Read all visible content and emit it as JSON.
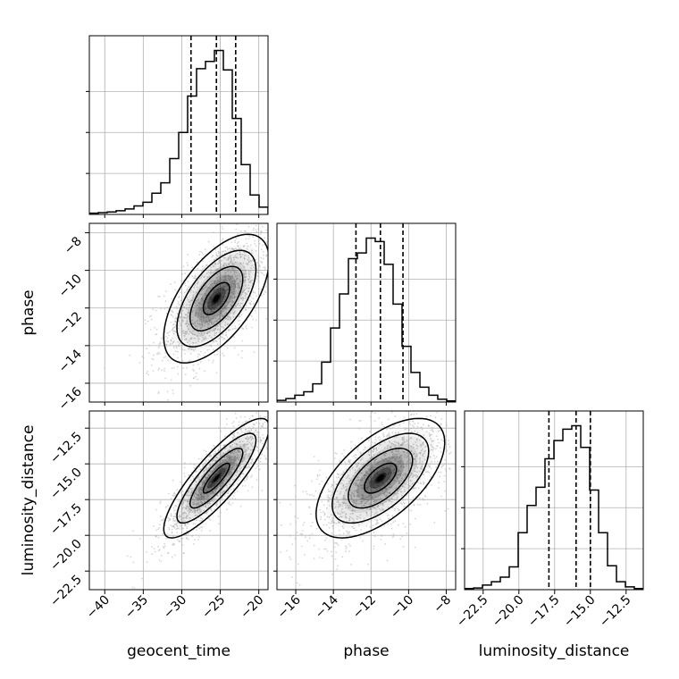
{
  "chart_data": {
    "type": "corner",
    "parameters": [
      "geocent_time",
      "phase",
      "luminosity_distance"
    ],
    "axis_labels": {
      "geocent_time": "geocent_time",
      "phase": "phase",
      "luminosity_distance": "luminosity_distance"
    },
    "ranges": {
      "geocent_time": [
        -42.0,
        -18.8
      ],
      "phase": [
        -17.0,
        -7.5
      ],
      "luminosity_distance": [
        -23.8,
        -11.3
      ]
    },
    "ticks": {
      "geocent_time": [
        -40,
        -35,
        -30,
        -25,
        -20
      ],
      "phase": [
        -16,
        -14,
        -12,
        -10,
        -8
      ],
      "luminosity_distance": [
        -22.5,
        -20.0,
        -17.5,
        -15.0,
        -12.5
      ]
    },
    "tick_labels": {
      "geocent_time": [
        "−40",
        "−35",
        "−30",
        "−25",
        "−20"
      ],
      "phase": [
        "−16",
        "−14",
        "−12",
        "−10",
        "−8"
      ],
      "luminosity_distance": [
        "−22.5",
        "−20.0",
        "−17.5",
        "−15.0",
        "−12.5"
      ]
    },
    "quantiles": {
      "geocent_time": [
        -28.8,
        -25.5,
        -23.0
      ],
      "phase": [
        -12.8,
        -11.5,
        -10.3
      ],
      "luminosity_distance": [
        -17.9,
        -16.0,
        -15.0
      ]
    },
    "histograms": {
      "geocent_time": {
        "edges": [
          -42.0,
          -40.84,
          -39.68,
          -38.52,
          -37.36,
          -36.2,
          -35.04,
          -33.88,
          -32.72,
          -31.56,
          -30.4,
          -29.24,
          -28.08,
          -26.92,
          -25.76,
          -24.6,
          -23.44,
          -22.28,
          -21.12,
          -19.96,
          -18.8
        ],
        "counts": [
          2,
          3,
          4,
          6,
          9,
          14,
          20,
          35,
          52,
          92,
          135,
          195,
          240,
          252,
          270,
          238,
          158,
          82,
          32,
          12
        ]
      },
      "phase": {
        "edges": [
          -17.0,
          -16.525,
          -16.05,
          -15.575,
          -15.1,
          -14.625,
          -14.15,
          -13.675,
          -13.2,
          -12.725,
          -12.25,
          -11.775,
          -11.3,
          -10.825,
          -10.35,
          -9.875,
          -9.4,
          -8.925,
          -8.45,
          -7.975,
          -7.5
        ],
        "counts": [
          3,
          6,
          12,
          18,
          32,
          70,
          130,
          190,
          252,
          262,
          288,
          282,
          242,
          172,
          98,
          52,
          26,
          12,
          5,
          2
        ]
      },
      "luminosity_distance": {
        "edges": [
          -23.8,
          -23.175,
          -22.55,
          -21.925,
          -21.3,
          -20.675,
          -20.05,
          -19.425,
          -18.8,
          -18.175,
          -17.55,
          -16.925,
          -16.3,
          -15.675,
          -15.05,
          -14.425,
          -13.8,
          -13.175,
          -12.55,
          -11.925,
          -11.3
        ],
        "counts": [
          2,
          3,
          8,
          14,
          22,
          40,
          100,
          148,
          180,
          230,
          262,
          282,
          288,
          250,
          175,
          100,
          42,
          14,
          5,
          2
        ]
      }
    },
    "pairs": [
      {
        "x": "geocent_time",
        "y": "phase",
        "mean": [
          -25.5,
          -11.5
        ],
        "sd": [
          3.6,
          1.8
        ],
        "corr": 0.6
      },
      {
        "x": "geocent_time",
        "y": "luminosity_distance",
        "mean": [
          -25.5,
          -16.0
        ],
        "sd": [
          3.6,
          2.2
        ],
        "corr": 0.85
      },
      {
        "x": "phase",
        "y": "luminosity_distance",
        "mean": [
          -11.5,
          -16.0
        ],
        "sd": [
          1.8,
          2.2
        ],
        "corr": 0.6
      }
    ],
    "contour_levels": [
      0.5,
      1.0,
      1.5,
      2.0
    ],
    "grid": true,
    "colors": {
      "ink": "#000000",
      "grid": "#b0b0b0",
      "scatter": "#b4b4b4",
      "density": "#000000"
    }
  }
}
